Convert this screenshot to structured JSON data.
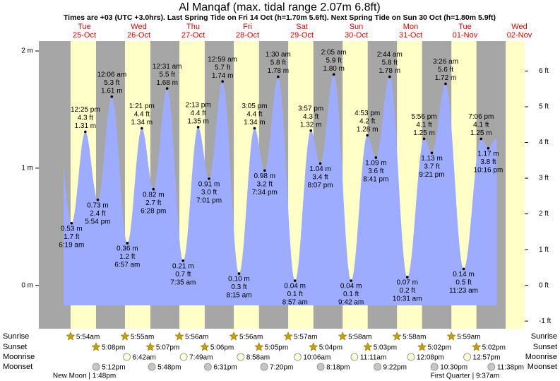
{
  "chart_data": {
    "type": "area",
    "title": "Al Manqaf (max. tidal range 2.07m 6.8ft)",
    "subtitle": "Times are +03 (UTC +3.0hrs). Last Spring Tide on Fri 14 Oct (h=1.70m 5.6ft). Next Spring Tide on Sun 30 Oct (h=1.80m 5.9ft)",
    "color": "#9eacff",
    "ylim": [
      -0.37,
      2.085
    ],
    "yticks": [
      {
        "value": 0,
        "label": "0 m"
      },
      {
        "value": 1,
        "label": "1 m"
      },
      {
        "value": 2,
        "label": "2 m"
      }
    ],
    "y2lim": [
      -1.214,
      6.841
    ],
    "y2ticks": [
      {
        "value": -1,
        "label": "-1 ft"
      },
      {
        "value": 0,
        "label": "0 ft"
      },
      {
        "value": 1,
        "label": "1 ft"
      },
      {
        "value": 2,
        "label": "2 ft"
      },
      {
        "value": 3,
        "label": "3 ft"
      },
      {
        "value": 4,
        "label": "4 ft"
      },
      {
        "value": 5,
        "label": "5 ft"
      },
      {
        "value": 6,
        "label": "6 ft"
      }
    ],
    "row_labels": [
      "Sunrise",
      "Sunset",
      "Moonrise",
      "Moonset"
    ],
    "days": [
      {
        "weekday": "Tue",
        "date": "25-Oct",
        "sunrise": "5:54am",
        "sunset": "5:08pm",
        "moonset": "5:12pm",
        "moon_phase": "New Moon | 1:48pm",
        "tides": [
          {
            "time": "6:19 am",
            "value": 0.53,
            "value_label": "0.53 m",
            "feet": 1.7,
            "feet_label": "1.7 ft"
          },
          {
            "time": "12:25 pm",
            "value": 1.31,
            "value_label": "1.31 m",
            "feet": 4.3,
            "feet_label": "4.3 ft"
          },
          {
            "time": "5:54 pm",
            "value": 0.73,
            "value_label": "0.73 m",
            "feet": 2.4,
            "feet_label": "2.4 ft"
          }
        ]
      },
      {
        "weekday": "Wed",
        "date": "26-Oct",
        "sunrise": "5:55am",
        "sunset": "5:07pm",
        "moonrise": "6:42am",
        "moonset": "5:48pm",
        "tides": [
          {
            "time": "12:06 am",
            "value": 1.61,
            "value_label": "1.61 m",
            "feet": 5.3,
            "feet_label": "5.3 ft"
          },
          {
            "time": "6:57 am",
            "value": 0.36,
            "value_label": "0.36 m",
            "feet": 1.2,
            "feet_label": "1.2 ft"
          },
          {
            "time": "1:21 pm",
            "value": 1.34,
            "value_label": "1.34 m",
            "feet": 4.4,
            "feet_label": "4.4 ft"
          },
          {
            "time": "6:28 pm",
            "value": 0.82,
            "value_label": "0.82 m",
            "feet": 2.7,
            "feet_label": "2.7 ft"
          }
        ]
      },
      {
        "weekday": "Thu",
        "date": "27-Oct",
        "sunrise": "5:56am",
        "sunset": "5:06pm",
        "moonrise": "7:49am",
        "moonset": "6:31pm",
        "tides": [
          {
            "time": "12:31 am",
            "value": 1.68,
            "value_label": "1.68 m",
            "feet": 5.5,
            "feet_label": "5.5 ft"
          },
          {
            "time": "7:35 am",
            "value": 0.21,
            "value_label": "0.21 m",
            "feet": 0.7,
            "feet_label": "0.7 ft"
          },
          {
            "time": "2:13 pm",
            "value": 1.35,
            "value_label": "1.35 m",
            "feet": 4.4,
            "feet_label": "4.4 ft"
          },
          {
            "time": "7:01 pm",
            "value": 0.91,
            "value_label": "0.91 m",
            "feet": 3.0,
            "feet_label": "3.0 ft"
          }
        ]
      },
      {
        "weekday": "Fri",
        "date": "28-Oct",
        "sunrise": "5:56am",
        "sunset": "5:05pm",
        "moonrise": "8:58am",
        "moonset": "7:20pm",
        "tides": [
          {
            "time": "12:59 am",
            "value": 1.74,
            "value_label": "1.74 m",
            "feet": 5.7,
            "feet_label": "5.7 ft"
          },
          {
            "time": "8:15 am",
            "value": 0.1,
            "value_label": "0.10 m",
            "feet": 0.3,
            "feet_label": "0.3 ft"
          },
          {
            "time": "3:05 pm",
            "value": 1.34,
            "value_label": "1.34 m",
            "feet": 4.4,
            "feet_label": "4.4 ft"
          },
          {
            "time": "7:34 pm",
            "value": 0.98,
            "value_label": "0.98 m",
            "feet": 3.2,
            "feet_label": "3.2 ft"
          }
        ]
      },
      {
        "weekday": "Sat",
        "date": "29-Oct",
        "sunrise": "5:57am",
        "sunset": "5:04pm",
        "moonrise": "10:06am",
        "moonset": "8:18pm",
        "tides": [
          {
            "time": "1:30 am",
            "value": 1.78,
            "value_label": "1.78 m",
            "feet": 5.8,
            "feet_label": "5.8 ft"
          },
          {
            "time": "8:57 am",
            "value": 0.04,
            "value_label": "0.04 m",
            "feet": 0.1,
            "feet_label": "0.1 ft"
          },
          {
            "time": "3:57 pm",
            "value": 1.32,
            "value_label": "1.32 m",
            "feet": 4.3,
            "feet_label": "4.3 ft"
          },
          {
            "time": "8:07 pm",
            "value": 1.04,
            "value_label": "1.04 m",
            "feet": 3.4,
            "feet_label": "3.4 ft"
          }
        ]
      },
      {
        "weekday": "Sun",
        "date": "30-Oct",
        "sunrise": "5:58am",
        "sunset": "5:03pm",
        "moonrise": "11:11am",
        "moonset": "9:22pm",
        "tides": [
          {
            "time": "2:05 am",
            "value": 1.8,
            "value_label": "1.80 m",
            "feet": 5.9,
            "feet_label": "5.9 ft"
          },
          {
            "time": "9:42 am",
            "value": 0.04,
            "value_label": "0.04 m",
            "feet": 0.1,
            "feet_label": "0.1 ft"
          },
          {
            "time": "4:53 pm",
            "value": 1.28,
            "value_label": "1.28 m",
            "feet": 4.2,
            "feet_label": "4.2 ft"
          },
          {
            "time": "8:41 pm",
            "value": 1.09,
            "value_label": "1.09 m",
            "feet": 3.6,
            "feet_label": "3.6 ft"
          }
        ]
      },
      {
        "weekday": "Mon",
        "date": "31-Oct",
        "sunrise": "5:58am",
        "sunset": "5:02pm",
        "moonrise": "12:08pm",
        "moonset": "10:30pm",
        "tides": [
          {
            "time": "2:44 am",
            "value": 1.78,
            "value_label": "1.78 m",
            "feet": 5.8,
            "feet_label": "5.8 ft"
          },
          {
            "time": "10:31 am",
            "value": 0.07,
            "value_label": "0.07 m",
            "feet": 0.2,
            "feet_label": "0.2 ft"
          },
          {
            "time": "5:56 pm",
            "value": 1.25,
            "value_label": "1.25 m",
            "feet": 4.1,
            "feet_label": "4.1 ft"
          },
          {
            "time": "9:21 pm",
            "value": 1.13,
            "value_label": "1.13 m",
            "feet": 3.7,
            "feet_label": "3.7 ft"
          }
        ]
      },
      {
        "weekday": "Tue",
        "date": "01-Nov",
        "sunrise": "5:59am",
        "sunset": "5:02pm",
        "moonrise": "12:57pm",
        "moonset": "11:38pm",
        "moon_phase": "First Quarter | 9:37am",
        "tides": [
          {
            "time": "3:26 am",
            "value": 1.72,
            "value_label": "1.72 m",
            "feet": 5.6,
            "feet_label": "5.6 ft"
          },
          {
            "time": "11:23 am",
            "value": 0.14,
            "value_label": "0.14 m",
            "feet": 0.5,
            "feet_label": "0.5 ft"
          },
          {
            "time": "7:06 pm",
            "value": 1.25,
            "value_label": "1.25 m",
            "feet": 4.1,
            "feet_label": "4.1 ft"
          },
          {
            "time": "10:16 pm",
            "value": 1.17,
            "value_label": "1.17 m",
            "feet": 3.8,
            "feet_label": "3.8 ft"
          }
        ]
      },
      {
        "weekday": "Wed",
        "date": "02-Nov"
      }
    ]
  }
}
